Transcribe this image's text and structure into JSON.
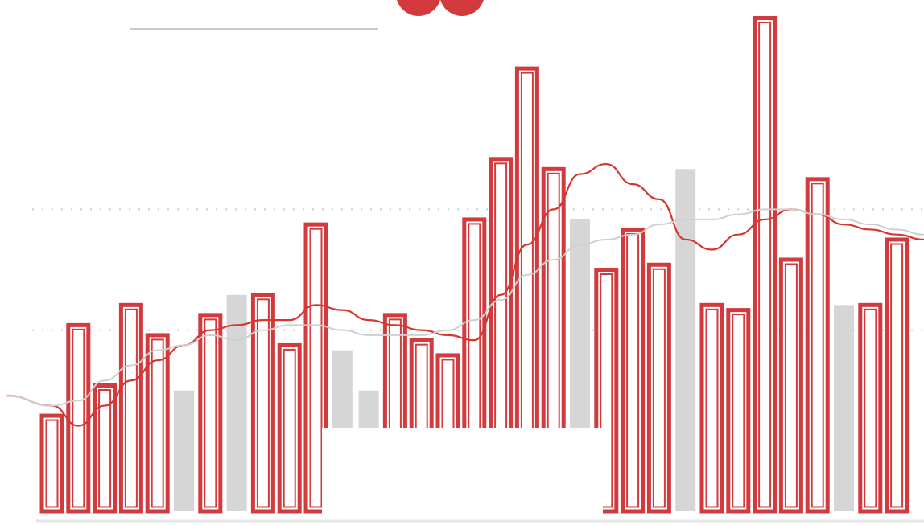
{
  "chart_data": {
    "type": "bar",
    "title": "",
    "xlabel": "",
    "ylabel": "",
    "ylim": [
      0,
      100
    ],
    "grid": true,
    "legend": "none",
    "colors": {
      "red": "#d23a3e",
      "red_inner": "#ffffff",
      "gray": "#d6d6d6",
      "line_red": "#d8352f",
      "line_gray": "#cfcfcf",
      "grid": "#cccccc",
      "title_rule": "#c8c8c8"
    },
    "bars": [
      {
        "value": 19,
        "color": "red"
      },
      {
        "value": 37,
        "color": "red"
      },
      {
        "value": 25,
        "color": "red"
      },
      {
        "value": 41,
        "color": "red"
      },
      {
        "value": 35,
        "color": "red"
      },
      {
        "value": 24,
        "color": "gray"
      },
      {
        "value": 39,
        "color": "red"
      },
      {
        "value": 43,
        "color": "gray"
      },
      {
        "value": 43,
        "color": "red"
      },
      {
        "value": 33,
        "color": "red"
      },
      {
        "value": 57,
        "color": "red"
      },
      {
        "value": 32,
        "color": "gray"
      },
      {
        "value": 24,
        "color": "gray"
      },
      {
        "value": 39,
        "color": "red"
      },
      {
        "value": 34,
        "color": "red"
      },
      {
        "value": 31,
        "color": "red"
      },
      {
        "value": 58,
        "color": "red"
      },
      {
        "value": 70,
        "color": "red"
      },
      {
        "value": 88,
        "color": "red"
      },
      {
        "value": 68,
        "color": "red"
      },
      {
        "value": 58,
        "color": "gray"
      },
      {
        "value": 48,
        "color": "red"
      },
      {
        "value": 56,
        "color": "red"
      },
      {
        "value": 49,
        "color": "red"
      },
      {
        "value": 68,
        "color": "gray"
      },
      {
        "value": 41,
        "color": "red"
      },
      {
        "value": 40,
        "color": "red"
      },
      {
        "value": 98,
        "color": "red"
      },
      {
        "value": 50,
        "color": "red"
      },
      {
        "value": 66,
        "color": "red"
      },
      {
        "value": 41,
        "color": "gray"
      },
      {
        "value": 41,
        "color": "red"
      },
      {
        "value": 54,
        "color": "red"
      }
    ],
    "series": [
      {
        "values": [
          21,
          17,
          21,
          26,
          30,
          33,
          36,
          37,
          38,
          38,
          41,
          40,
          38,
          37,
          36,
          35,
          34,
          43,
          53,
          60,
          67,
          69,
          65,
          62,
          54,
          52,
          55,
          58,
          60,
          59,
          57,
          56,
          55
        ],
        "color": "line_red"
      },
      {
        "values": [
          21,
          22,
          26,
          29,
          32,
          33,
          35,
          34,
          36,
          37,
          37,
          36,
          35,
          35,
          35,
          36,
          38,
          42,
          47,
          50,
          53,
          54,
          55,
          57,
          58,
          58,
          59,
          60,
          60,
          59,
          58,
          57,
          56
        ],
        "color": "line_gray"
      }
    ],
    "gridlines": [
      60,
      36
    ]
  }
}
